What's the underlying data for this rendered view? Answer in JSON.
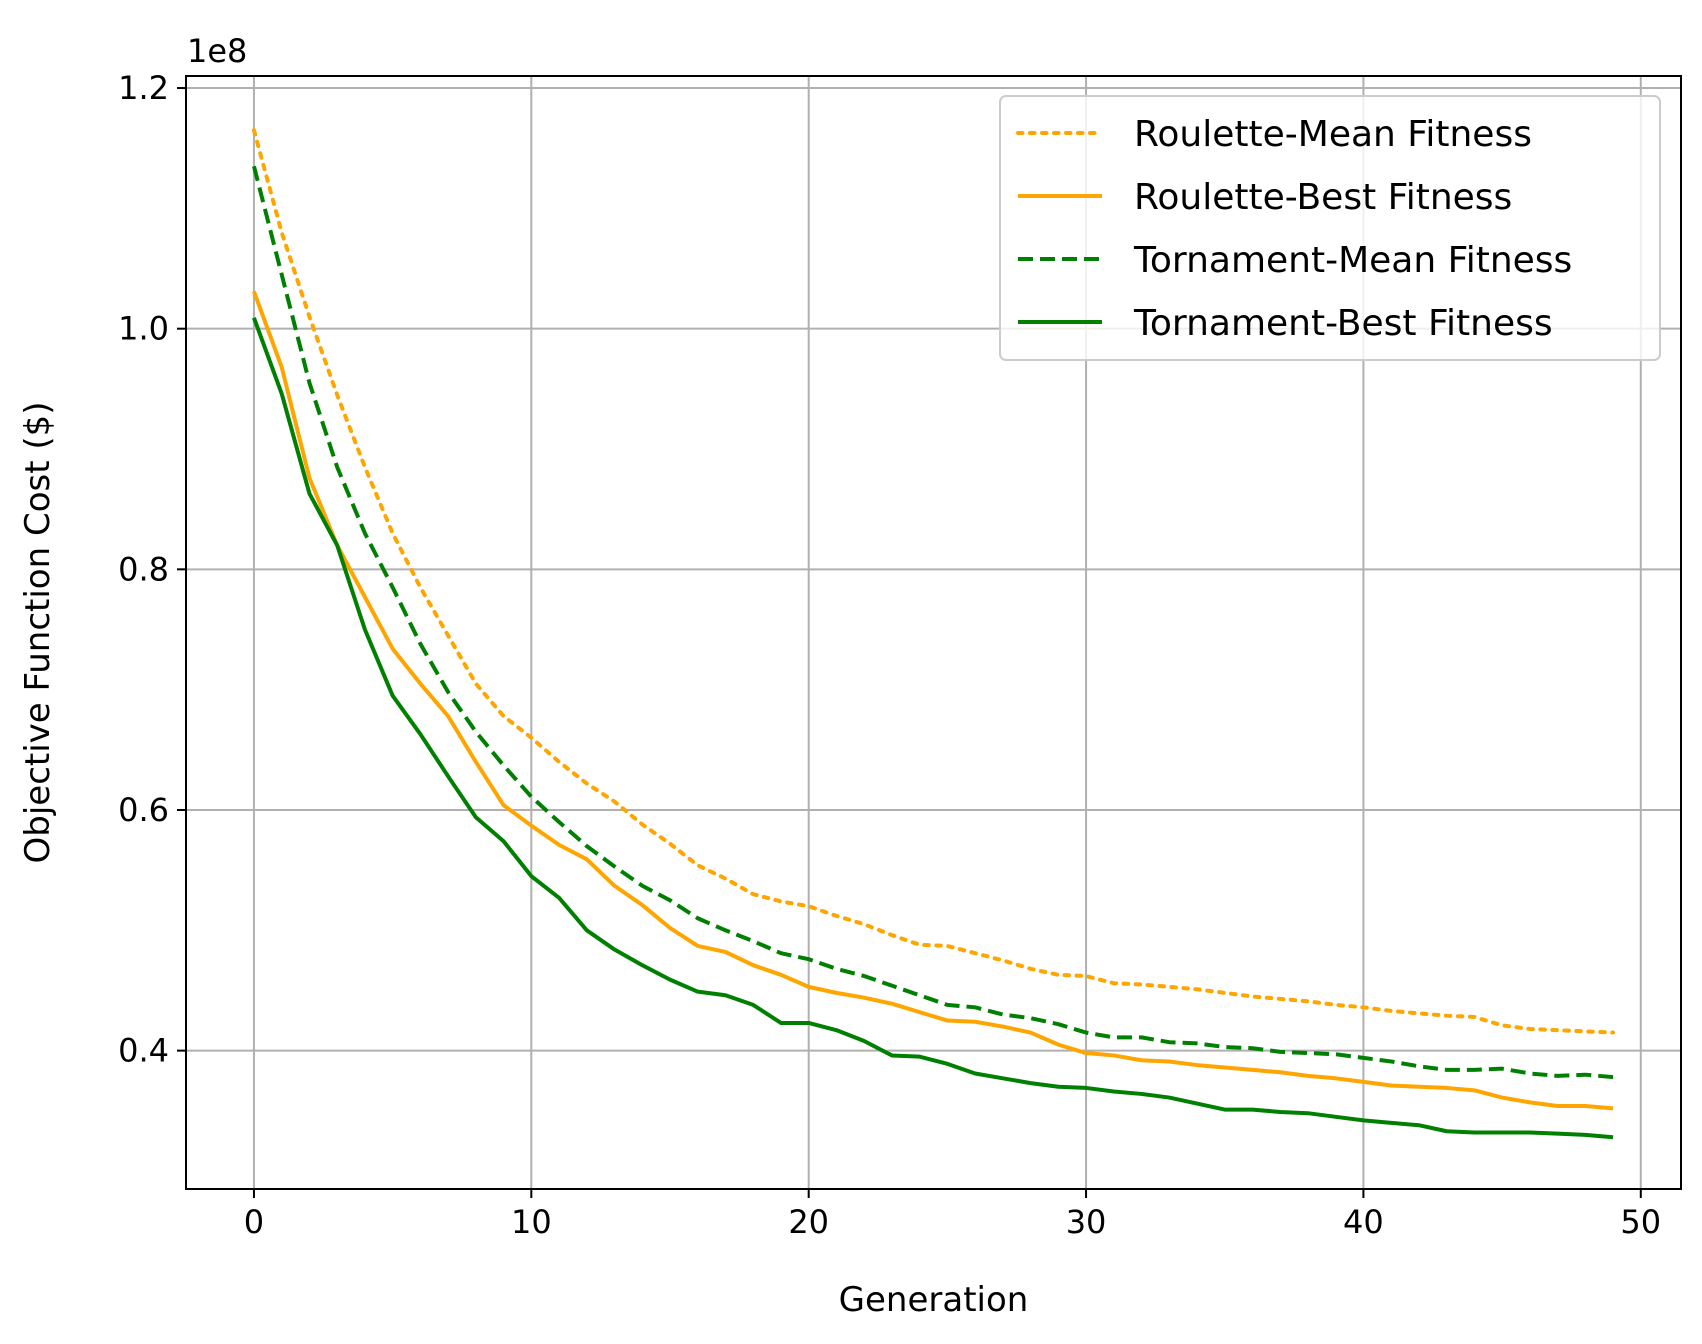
{
  "chart_data": {
    "type": "line",
    "xlabel": "Generation",
    "ylabel": "Objective Function Cost ($)",
    "offset_label": "1e8",
    "xlim": [
      -2.45,
      51.45
    ],
    "ylim": [
      28500000,
      121000000
    ],
    "xticks": [
      0,
      10,
      20,
      30,
      40,
      50
    ],
    "yticks": [
      40000000,
      60000000,
      80000000,
      100000000,
      120000000
    ],
    "ytick_labels": [
      "0.4",
      "0.6",
      "0.8",
      "1.0",
      "1.2"
    ],
    "grid": true,
    "legend_position": "top-right",
    "x": [
      0,
      1,
      2,
      3,
      4,
      5,
      6,
      7,
      8,
      9,
      10,
      11,
      12,
      13,
      14,
      15,
      16,
      17,
      18,
      19,
      20,
      21,
      22,
      23,
      24,
      25,
      26,
      27,
      28,
      29,
      30,
      31,
      32,
      33,
      34,
      35,
      36,
      37,
      38,
      39,
      40,
      41,
      42,
      43,
      44,
      45,
      46,
      47,
      48,
      49
    ],
    "series": [
      {
        "name": "Roulette-Mean Fitness",
        "color": "#ffa500",
        "style": "dotted",
        "values": [
          116500000,
          108000000,
          101000000,
          94500000,
          88500000,
          83000000,
          78500000,
          74500000,
          70500000,
          67800000,
          66000000,
          64000000,
          62200000,
          60700000,
          58800000,
          57200000,
          55400000,
          54300000,
          53000000,
          52400000,
          52000000,
          51200000,
          50500000,
          49600000,
          48800000,
          48700000,
          48100000,
          47500000,
          46800000,
          46300000,
          46200000,
          45600000,
          45500000,
          45300000,
          45100000,
          44800000,
          44500000,
          44300000,
          44100000,
          43800000,
          43600000,
          43300000,
          43100000,
          42900000,
          42800000,
          42100000,
          41800000,
          41700000,
          41600000,
          41500000
        ]
      },
      {
        "name": "Roulette-Best Fitness",
        "color": "#ffa500",
        "style": "solid",
        "values": [
          103100000,
          96800000,
          87600000,
          82000000,
          77700000,
          73400000,
          70500000,
          67800000,
          64000000,
          60400000,
          58700000,
          57100000,
          55900000,
          53700000,
          52100000,
          50200000,
          48700000,
          48200000,
          47100000,
          46300000,
          45300000,
          44800000,
          44400000,
          43900000,
          43200000,
          42500000,
          42400000,
          42000000,
          41500000,
          40500000,
          39800000,
          39600000,
          39200000,
          39100000,
          38800000,
          38600000,
          38400000,
          38200000,
          37900000,
          37700000,
          37400000,
          37100000,
          37000000,
          36900000,
          36700000,
          36100000,
          35700000,
          35400000,
          35400000,
          35200000
        ]
      },
      {
        "name": "Tornament-Mean Fitness",
        "color": "#008000",
        "style": "dashed",
        "values": [
          113500000,
          104500000,
          95500000,
          88500000,
          83000000,
          78500000,
          73800000,
          69800000,
          66500000,
          63700000,
          61100000,
          59000000,
          57000000,
          55300000,
          53700000,
          52500000,
          51000000,
          50000000,
          49100000,
          48100000,
          47600000,
          46800000,
          46200000,
          45400000,
          44600000,
          43800000,
          43600000,
          43000000,
          42700000,
          42200000,
          41500000,
          41100000,
          41100000,
          40700000,
          40600000,
          40300000,
          40200000,
          39900000,
          39800000,
          39700000,
          39400000,
          39100000,
          38700000,
          38400000,
          38400000,
          38500000,
          38100000,
          37900000,
          38000000,
          37800000
        ]
      },
      {
        "name": "Tornament-Best Fitness",
        "color": "#008000",
        "style": "solid",
        "values": [
          100900000,
          94600000,
          86300000,
          82000000,
          75000000,
          69500000,
          66300000,
          62800000,
          59400000,
          57400000,
          54500000,
          52700000,
          50000000,
          48400000,
          47100000,
          45900000,
          44900000,
          44600000,
          43800000,
          42300000,
          42300000,
          41700000,
          40800000,
          39600000,
          39500000,
          38900000,
          38100000,
          37700000,
          37300000,
          37000000,
          36900000,
          36600000,
          36400000,
          36100000,
          35600000,
          35100000,
          35100000,
          34900000,
          34800000,
          34500000,
          34200000,
          34000000,
          33800000,
          33300000,
          33200000,
          33200000,
          33200000,
          33100000,
          33000000,
          32800000
        ]
      }
    ]
  }
}
